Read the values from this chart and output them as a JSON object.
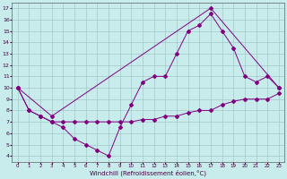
{
  "xlabel": "Windchill (Refroidissement éolien,°C)",
  "bg_color": "#c8ecec",
  "line_color": "#800080",
  "grid_color": "#a0c8c8",
  "ylim": [
    3.5,
    17.5
  ],
  "xlim": [
    -0.5,
    23.5
  ],
  "yticks": [
    4,
    5,
    6,
    7,
    8,
    9,
    10,
    11,
    12,
    13,
    14,
    15,
    16,
    17
  ],
  "xticks": [
    0,
    1,
    2,
    3,
    4,
    5,
    6,
    7,
    8,
    9,
    10,
    11,
    12,
    13,
    14,
    15,
    16,
    17,
    18,
    19,
    20,
    21,
    22,
    23
  ],
  "line1_x": [
    0,
    3,
    17,
    23
  ],
  "line1_y": [
    10,
    7.5,
    17,
    10
  ],
  "line2_x": [
    0,
    1,
    2,
    3,
    4,
    5,
    6,
    7,
    8,
    9,
    10,
    11,
    12,
    13,
    14,
    15,
    16,
    17,
    18,
    19,
    20,
    21,
    22,
    23
  ],
  "line2_y": [
    10,
    8,
    7.5,
    7,
    6.5,
    5.5,
    5,
    4.5,
    4,
    6.5,
    8.5,
    10.5,
    11,
    11,
    13,
    15,
    15.5,
    16.5,
    15,
    13.5,
    11,
    10.5,
    11,
    10
  ],
  "line3_x": [
    0,
    1,
    2,
    3,
    4,
    5,
    6,
    7,
    8,
    9,
    10,
    11,
    12,
    13,
    14,
    15,
    16,
    17,
    18,
    19,
    20,
    21,
    22,
    23
  ],
  "line3_y": [
    10,
    8,
    7.5,
    7,
    7,
    7,
    7,
    7,
    7,
    7,
    7,
    7.2,
    7.2,
    7.5,
    7.5,
    7.8,
    8,
    8,
    8.5,
    8.8,
    9,
    9,
    9,
    9.5
  ]
}
